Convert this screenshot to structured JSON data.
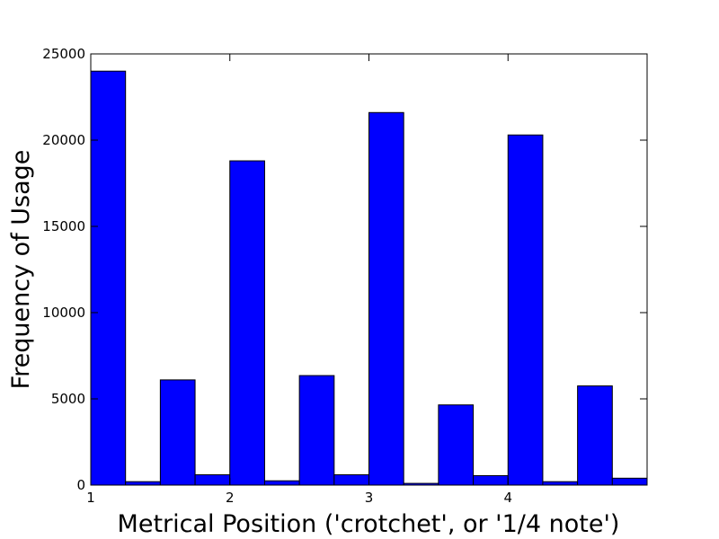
{
  "chart_data": {
    "type": "bar",
    "title": "",
    "xlabel": "Metrical Position ('crotchet', or '1/4 note')",
    "ylabel": "Frequency of Usage",
    "xlim": [
      1,
      5
    ],
    "ylim": [
      0,
      25000
    ],
    "x_ticks": [
      "1",
      "2",
      "3",
      "4"
    ],
    "y_ticks": [
      "0",
      "5000",
      "10000",
      "15000",
      "20000",
      "25000"
    ],
    "bin_width": 0.25,
    "bins": [
      {
        "x": 1.0,
        "value": 24000
      },
      {
        "x": 1.25,
        "value": 200
      },
      {
        "x": 1.5,
        "value": 6100
      },
      {
        "x": 1.75,
        "value": 600
      },
      {
        "x": 2.0,
        "value": 18800
      },
      {
        "x": 2.25,
        "value": 250
      },
      {
        "x": 2.5,
        "value": 6350
      },
      {
        "x": 2.75,
        "value": 600
      },
      {
        "x": 3.0,
        "value": 21600
      },
      {
        "x": 3.25,
        "value": 100
      },
      {
        "x": 3.5,
        "value": 4650
      },
      {
        "x": 3.75,
        "value": 550
      },
      {
        "x": 4.0,
        "value": 20300
      },
      {
        "x": 4.25,
        "value": 200
      },
      {
        "x": 4.5,
        "value": 5750
      },
      {
        "x": 4.75,
        "value": 400
      }
    ],
    "bar_color": "#0000ff",
    "grid": false,
    "legend": "none"
  }
}
